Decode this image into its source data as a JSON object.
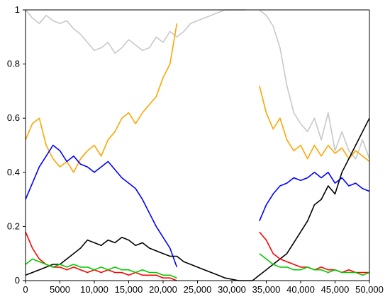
{
  "chart_data": {
    "type": "line",
    "title": "",
    "xlabel": "",
    "ylabel": "",
    "xlim": [
      0,
      50000
    ],
    "ylim": [
      0,
      1
    ],
    "x_ticks": [
      0,
      5000,
      10000,
      15000,
      20000,
      25000,
      30000,
      35000,
      40000,
      45000,
      50000
    ],
    "x_tick_labels": [
      "0",
      "5000",
      "10,000",
      "15,000",
      "20,000",
      "25,000",
      "30,000",
      "35,000",
      "40,000",
      "45,000",
      "50,000"
    ],
    "y_ticks": [
      0,
      0.2,
      0.4,
      0.6,
      0.8,
      1
    ],
    "y_tick_labels": [
      "0",
      "0.2",
      "0.4",
      "0.6",
      "0.8",
      "1"
    ],
    "grid": false,
    "legend": "none",
    "series": [
      {
        "color": "#c8c8c8",
        "points": [
          [
            0,
            1.0
          ],
          [
            1000,
            0.97
          ],
          [
            2000,
            0.95
          ],
          [
            3000,
            0.98
          ],
          [
            4000,
            0.96
          ],
          [
            5000,
            0.95
          ],
          [
            6000,
            0.96
          ],
          [
            7000,
            0.93
          ],
          [
            8000,
            0.91
          ],
          [
            9000,
            0.88
          ],
          [
            10000,
            0.85
          ],
          [
            11000,
            0.86
          ],
          [
            12000,
            0.88
          ],
          [
            13000,
            0.84
          ],
          [
            14000,
            0.86
          ],
          [
            15000,
            0.89
          ],
          [
            16000,
            0.87
          ],
          [
            17000,
            0.85
          ],
          [
            18000,
            0.86
          ],
          [
            19000,
            0.9
          ],
          [
            20000,
            0.88
          ],
          [
            21000,
            0.92
          ],
          [
            22000,
            0.9
          ],
          [
            23000,
            0.92
          ],
          [
            24000,
            0.95
          ],
          [
            25000,
            0.96
          ],
          [
            26000,
            0.97
          ],
          [
            27000,
            0.98
          ],
          [
            28000,
            0.99
          ],
          [
            29000,
            1.0
          ],
          [
            30000,
            1.0
          ],
          [
            31000,
            1.0
          ],
          [
            32000,
            1.0
          ],
          [
            33000,
            null
          ],
          [
            34000,
            1.0
          ],
          [
            35000,
            0.98
          ],
          [
            36000,
            0.94
          ],
          [
            37000,
            0.86
          ],
          [
            38000,
            0.72
          ],
          [
            39000,
            0.62
          ],
          [
            40000,
            0.58
          ],
          [
            41000,
            0.55
          ],
          [
            42000,
            0.6
          ],
          [
            43000,
            0.52
          ],
          [
            44000,
            0.62
          ],
          [
            45000,
            0.48
          ],
          [
            46000,
            0.55
          ],
          [
            47000,
            0.48
          ],
          [
            48000,
            0.45
          ],
          [
            49000,
            0.52
          ],
          [
            50000,
            0.45
          ]
        ]
      },
      {
        "color": "#ffa500",
        "points": [
          [
            0,
            0.52
          ],
          [
            1000,
            0.58
          ],
          [
            2000,
            0.6
          ],
          [
            3000,
            0.5
          ],
          [
            4000,
            0.45
          ],
          [
            5000,
            0.42
          ],
          [
            6000,
            0.44
          ],
          [
            7000,
            0.4
          ],
          [
            8000,
            0.45
          ],
          [
            9000,
            0.48
          ],
          [
            10000,
            0.5
          ],
          [
            11000,
            0.46
          ],
          [
            12000,
            0.52
          ],
          [
            13000,
            0.55
          ],
          [
            14000,
            0.6
          ],
          [
            15000,
            0.62
          ],
          [
            16000,
            0.58
          ],
          [
            17000,
            0.62
          ],
          [
            18000,
            0.65
          ],
          [
            19000,
            0.68
          ],
          [
            20000,
            0.75
          ],
          [
            21000,
            0.8
          ],
          [
            22000,
            0.95
          ],
          [
            23000,
            null
          ],
          [
            34000,
            0.72
          ],
          [
            35000,
            0.62
          ],
          [
            36000,
            0.56
          ],
          [
            37000,
            0.6
          ],
          [
            38000,
            0.52
          ],
          [
            39000,
            0.48
          ],
          [
            40000,
            0.5
          ],
          [
            41000,
            0.45
          ],
          [
            42000,
            0.5
          ],
          [
            43000,
            0.46
          ],
          [
            44000,
            0.5
          ],
          [
            45000,
            0.47
          ],
          [
            46000,
            0.49
          ],
          [
            47000,
            0.45
          ],
          [
            48000,
            0.48
          ],
          [
            49000,
            0.46
          ],
          [
            50000,
            0.44
          ]
        ]
      },
      {
        "color": "#0000ff",
        "points": [
          [
            0,
            0.3
          ],
          [
            1000,
            0.36
          ],
          [
            2000,
            0.42
          ],
          [
            3000,
            0.46
          ],
          [
            4000,
            0.5
          ],
          [
            5000,
            0.48
          ],
          [
            6000,
            0.44
          ],
          [
            7000,
            0.46
          ],
          [
            8000,
            0.43
          ],
          [
            9000,
            0.42
          ],
          [
            10000,
            0.4
          ],
          [
            11000,
            0.42
          ],
          [
            12000,
            0.44
          ],
          [
            13000,
            0.41
          ],
          [
            14000,
            0.38
          ],
          [
            15000,
            0.36
          ],
          [
            16000,
            0.34
          ],
          [
            17000,
            0.3
          ],
          [
            18000,
            0.25
          ],
          [
            19000,
            0.2
          ],
          [
            20000,
            0.16
          ],
          [
            21000,
            0.12
          ],
          [
            22000,
            0.05
          ],
          [
            23000,
            null
          ],
          [
            34000,
            0.22
          ],
          [
            35000,
            0.28
          ],
          [
            36000,
            0.32
          ],
          [
            37000,
            0.35
          ],
          [
            38000,
            0.36
          ],
          [
            39000,
            0.38
          ],
          [
            40000,
            0.37
          ],
          [
            41000,
            0.38
          ],
          [
            42000,
            0.4
          ],
          [
            43000,
            0.38
          ],
          [
            44000,
            0.4
          ],
          [
            45000,
            0.36
          ],
          [
            46000,
            0.38
          ],
          [
            47000,
            0.35
          ],
          [
            48000,
            0.36
          ],
          [
            49000,
            0.34
          ],
          [
            50000,
            0.33
          ]
        ]
      },
      {
        "color": "#000000",
        "points": [
          [
            0,
            0.02
          ],
          [
            1000,
            0.03
          ],
          [
            2000,
            0.04
          ],
          [
            3000,
            0.05
          ],
          [
            4000,
            0.06
          ],
          [
            5000,
            0.06
          ],
          [
            6000,
            0.08
          ],
          [
            7000,
            0.1
          ],
          [
            8000,
            0.12
          ],
          [
            9000,
            0.15
          ],
          [
            10000,
            0.14
          ],
          [
            11000,
            0.13
          ],
          [
            12000,
            0.15
          ],
          [
            13000,
            0.14
          ],
          [
            14000,
            0.16
          ],
          [
            15000,
            0.15
          ],
          [
            16000,
            0.13
          ],
          [
            17000,
            0.14
          ],
          [
            18000,
            0.12
          ],
          [
            19000,
            0.11
          ],
          [
            20000,
            0.1
          ],
          [
            21000,
            0.09
          ],
          [
            22000,
            0.09
          ],
          [
            23000,
            0.07
          ],
          [
            24000,
            0.06
          ],
          [
            25000,
            0.05
          ],
          [
            26000,
            0.04
          ],
          [
            27000,
            0.03
          ],
          [
            28000,
            0.02
          ],
          [
            29000,
            0.01
          ],
          [
            30000,
            0.005
          ],
          [
            31000,
            0.0
          ],
          [
            32000,
            0.0
          ],
          [
            33000,
            0.0
          ],
          [
            34000,
            0.02
          ],
          [
            35000,
            0.04
          ],
          [
            36000,
            0.06
          ],
          [
            37000,
            0.08
          ],
          [
            38000,
            0.1
          ],
          [
            39000,
            0.14
          ],
          [
            40000,
            0.18
          ],
          [
            41000,
            0.22
          ],
          [
            42000,
            0.28
          ],
          [
            43000,
            0.3
          ],
          [
            44000,
            0.35
          ],
          [
            45000,
            0.32
          ],
          [
            46000,
            0.4
          ],
          [
            47000,
            0.45
          ],
          [
            48000,
            0.5
          ],
          [
            49000,
            0.55
          ],
          [
            50000,
            0.6
          ]
        ]
      },
      {
        "color": "#ff0000",
        "points": [
          [
            0,
            0.18
          ],
          [
            1000,
            0.12
          ],
          [
            2000,
            0.08
          ],
          [
            3000,
            0.06
          ],
          [
            4000,
            0.05
          ],
          [
            5000,
            0.05
          ],
          [
            6000,
            0.04
          ],
          [
            7000,
            0.05
          ],
          [
            8000,
            0.04
          ],
          [
            9000,
            0.03
          ],
          [
            10000,
            0.04
          ],
          [
            11000,
            0.03
          ],
          [
            12000,
            0.04
          ],
          [
            13000,
            0.03
          ],
          [
            14000,
            0.03
          ],
          [
            15000,
            0.02
          ],
          [
            16000,
            0.03
          ],
          [
            17000,
            0.02
          ],
          [
            18000,
            0.02
          ],
          [
            19000,
            0.02
          ],
          [
            20000,
            0.01
          ],
          [
            21000,
            0.01
          ],
          [
            22000,
            0.0
          ],
          [
            23000,
            null
          ],
          [
            34000,
            0.18
          ],
          [
            35000,
            0.15
          ],
          [
            36000,
            0.1
          ],
          [
            37000,
            0.08
          ],
          [
            38000,
            0.07
          ],
          [
            39000,
            0.06
          ],
          [
            40000,
            0.05
          ],
          [
            41000,
            0.05
          ],
          [
            42000,
            0.04
          ],
          [
            43000,
            0.05
          ],
          [
            44000,
            0.04
          ],
          [
            45000,
            0.04
          ],
          [
            46000,
            0.03
          ],
          [
            47000,
            0.04
          ],
          [
            48000,
            0.03
          ],
          [
            49000,
            0.03
          ],
          [
            50000,
            0.03
          ]
        ]
      },
      {
        "color": "#00cc00",
        "points": [
          [
            0,
            0.06
          ],
          [
            1000,
            0.08
          ],
          [
            2000,
            0.07
          ],
          [
            3000,
            0.06
          ],
          [
            4000,
            0.05
          ],
          [
            5000,
            0.06
          ],
          [
            6000,
            0.05
          ],
          [
            7000,
            0.06
          ],
          [
            8000,
            0.05
          ],
          [
            9000,
            0.05
          ],
          [
            10000,
            0.04
          ],
          [
            11000,
            0.05
          ],
          [
            12000,
            0.04
          ],
          [
            13000,
            0.05
          ],
          [
            14000,
            0.04
          ],
          [
            15000,
            0.04
          ],
          [
            16000,
            0.03
          ],
          [
            17000,
            0.04
          ],
          [
            18000,
            0.03
          ],
          [
            19000,
            0.03
          ],
          [
            20000,
            0.02
          ],
          [
            21000,
            0.02
          ],
          [
            22000,
            0.01
          ],
          [
            23000,
            null
          ],
          [
            34000,
            0.1
          ],
          [
            35000,
            0.08
          ],
          [
            36000,
            0.06
          ],
          [
            37000,
            0.05
          ],
          [
            38000,
            0.05
          ],
          [
            39000,
            0.04
          ],
          [
            40000,
            0.04
          ],
          [
            41000,
            0.05
          ],
          [
            42000,
            0.04
          ],
          [
            43000,
            0.04
          ],
          [
            44000,
            0.03
          ],
          [
            45000,
            0.04
          ],
          [
            46000,
            0.03
          ],
          [
            47000,
            0.03
          ],
          [
            48000,
            0.03
          ],
          [
            49000,
            0.02
          ],
          [
            50000,
            0.03
          ]
        ]
      }
    ]
  }
}
